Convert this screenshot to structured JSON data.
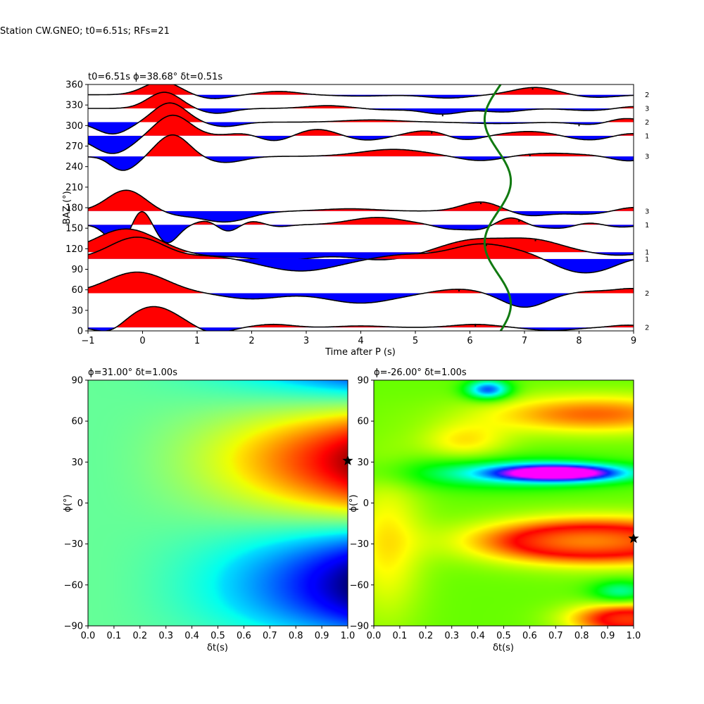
{
  "figure": {
    "suptitle": "Station CW.GNEO; t0=6.51s; RFs=21"
  },
  "chart_data": [
    {
      "type": "line",
      "title": "t0=6.51s ϕ=38.68° δt=0.51s",
      "xlabel": "Time after P (s)",
      "ylabel": "BAZ (°)",
      "xlim": [
        -1,
        9
      ],
      "ylim": [
        0,
        360
      ],
      "xticks": [
        "−1",
        "0",
        "1",
        "2",
        "3",
        "4",
        "5",
        "6",
        "7",
        "8",
        "9"
      ],
      "yticks": [
        "0",
        "30",
        "60",
        "90",
        "120",
        "150",
        "180",
        "210",
        "240",
        "270",
        "300",
        "330",
        "360"
      ],
      "positive_fill": "#ff0000",
      "negative_fill": "#0000ff",
      "t0_curve_color": "#117a11",
      "t0_curve": {
        "mean": 6.51,
        "amplitude": 0.24,
        "phase_deg": 38.68
      },
      "traces": [
        {
          "baz": 345,
          "count": "2",
          "amp": 19,
          "peaks": [
            [
              0.35,
              1.0,
              0.32
            ],
            [
              1.3,
              -0.3,
              0.3
            ],
            [
              2.5,
              0.25,
              0.35
            ],
            [
              4.0,
              -0.1,
              0.5
            ],
            [
              5.6,
              -0.25,
              0.4
            ],
            [
              7.2,
              0.55,
              0.4
            ],
            [
              8.3,
              -0.2,
              0.4
            ]
          ],
          "marker_t": 7.15
        },
        {
          "baz": 325,
          "count": "3",
          "amp": 20,
          "peaks": [
            [
              0.4,
              1.15,
              0.3
            ],
            [
              1.35,
              -0.35,
              0.3
            ],
            [
              3.4,
              0.2,
              0.4
            ],
            [
              4.5,
              -0.1,
              0.4
            ],
            [
              5.5,
              -0.4,
              0.35
            ],
            [
              6.6,
              -0.25,
              0.35
            ],
            [
              8.2,
              -0.15,
              0.4
            ],
            [
              9.0,
              0.15,
              0.3
            ]
          ],
          "marker_t": 5.5
        },
        {
          "baz": 305,
          "count": "2",
          "amp": 21,
          "peaks": [
            [
              -0.55,
              -0.8,
              0.3
            ],
            [
              0.5,
              1.3,
              0.3
            ],
            [
              1.5,
              -0.3,
              0.3
            ],
            [
              4.2,
              0.15,
              0.5
            ],
            [
              6.5,
              -0.1,
              0.5
            ],
            [
              8.3,
              -0.2,
              0.35
            ],
            [
              8.8,
              0.3,
              0.3
            ]
          ],
          "marker_t": 8.0
        },
        {
          "baz": 285,
          "count": "1",
          "amp": 21,
          "peaks": [
            [
              -0.55,
              -1.2,
              0.35
            ],
            [
              0.55,
              1.4,
              0.32
            ],
            [
              1.9,
              0.2,
              0.3
            ],
            [
              2.4,
              -0.4,
              0.3
            ],
            [
              3.2,
              0.45,
              0.35
            ],
            [
              4.1,
              -0.3,
              0.35
            ],
            [
              5.2,
              0.35,
              0.35
            ],
            [
              5.9,
              -0.3,
              0.3
            ],
            [
              7.1,
              0.3,
              0.45
            ],
            [
              8.2,
              -0.3,
              0.4
            ],
            [
              8.9,
              0.2,
              0.3
            ]
          ],
          "marker_t": 5.3
        },
        {
          "baz": 255,
          "count": "3",
          "amp": 22,
          "peaks": [
            [
              -0.7,
              0.3,
              0.2
            ],
            [
              -0.4,
              -1.0,
              0.3
            ],
            [
              0.55,
              1.4,
              0.3
            ],
            [
              1.5,
              -0.4,
              0.35
            ],
            [
              4.6,
              0.45,
              0.6
            ],
            [
              6.2,
              -0.3,
              0.4
            ],
            [
              7.5,
              0.2,
              0.6
            ],
            [
              8.9,
              -0.3,
              0.3
            ]
          ],
          "marker_t": 7.1
        },
        {
          "baz": 175,
          "count": "3",
          "amp": 22,
          "peaks": [
            [
              -0.3,
              1.35,
              0.35
            ],
            [
              0.6,
              -0.2,
              0.3
            ],
            [
              1.5,
              -0.7,
              0.45
            ],
            [
              3.8,
              0.15,
              0.5
            ],
            [
              6.2,
              0.6,
              0.35
            ],
            [
              7.1,
              -0.3,
              0.35
            ],
            [
              8.1,
              -0.2,
              0.4
            ],
            [
              9.0,
              0.25,
              0.3
            ]
          ],
          "marker_t": 6.2
        },
        {
          "baz": 155,
          "count": "1",
          "amp": 26,
          "peaks": [
            [
              -0.4,
              -1.2,
              0.23
            ],
            [
              -0.05,
              1.1,
              0.18
            ],
            [
              0.45,
              -1.0,
              0.2
            ],
            [
              1.2,
              0.25,
              0.2
            ],
            [
              1.55,
              -0.4,
              0.2
            ],
            [
              2.0,
              0.2,
              0.2
            ],
            [
              2.5,
              -0.1,
              0.2
            ],
            [
              4.3,
              0.4,
              0.5
            ],
            [
              5.6,
              -0.2,
              0.25
            ],
            [
              6.2,
              -0.3,
              0.3
            ],
            [
              6.8,
              0.55,
              0.3
            ],
            [
              7.1,
              -0.3,
              0.25
            ],
            [
              7.7,
              -0.2,
              0.25
            ],
            [
              8.2,
              0.15,
              0.3
            ],
            [
              8.7,
              -0.15,
              0.3
            ]
          ],
          "marker_t": 6.9
        },
        {
          "baz": 115,
          "count": "1",
          "amp": 22,
          "peaks": [
            [
              -0.3,
              1.5,
              0.55
            ],
            [
              1.2,
              -0.2,
              0.4
            ],
            [
              2.5,
              -0.55,
              0.6
            ],
            [
              4.4,
              -0.5,
              0.6
            ],
            [
              6.1,
              0.8,
              0.6
            ],
            [
              7.2,
              0.7,
              0.5
            ],
            [
              8.7,
              -0.2,
              0.4
            ]
          ],
          "marker_t": 7.2
        },
        {
          "baz": 105,
          "count": "1",
          "amp": 20,
          "peaks": [
            [
              -0.1,
              1.55,
              0.5
            ],
            [
              1.3,
              0.2,
              0.4
            ],
            [
              2.9,
              -0.85,
              0.65
            ],
            [
              4.8,
              0.3,
              0.5
            ],
            [
              6.2,
              1.05,
              0.55
            ],
            [
              7.1,
              0.3,
              0.4
            ],
            [
              8.1,
              -1.0,
              0.55
            ],
            [
              9.0,
              0.2,
              0.3
            ]
          ],
          "marker_t": 6.3
        },
        {
          "baz": 55,
          "count": "2",
          "amp": 20,
          "peaks": [
            [
              -0.1,
              1.5,
              0.55
            ],
            [
              2.0,
              -0.4,
              0.5
            ],
            [
              4.0,
              -0.7,
              0.6
            ],
            [
              5.8,
              0.3,
              0.45
            ],
            [
              7.0,
              -1.0,
              0.4
            ],
            [
              8.3,
              0.15,
              0.4
            ],
            [
              9.0,
              0.3,
              0.3
            ]
          ],
          "marker_t": 5.8
        },
        {
          "baz": 5,
          "count": "2",
          "amp": 22,
          "peaks": [
            [
              -0.6,
              -0.45,
              0.25
            ],
            [
              0.2,
              1.35,
              0.45
            ],
            [
              1.3,
              -0.4,
              0.3
            ],
            [
              2.4,
              0.2,
              0.35
            ],
            [
              4.0,
              0.1,
              0.4
            ],
            [
              6.1,
              0.2,
              0.4
            ],
            [
              7.5,
              -0.2,
              0.4
            ],
            [
              8.9,
              0.15,
              0.3
            ]
          ],
          "marker_t": 6.1
        }
      ]
    },
    {
      "type": "heatmap",
      "title": "ϕ=31.00° δt=1.00s",
      "xlabel": "δt(s)",
      "ylabel": "ϕ(°)",
      "xlim": [
        0,
        1
      ],
      "ylim": [
        -90,
        90
      ],
      "xticks": [
        "0.0",
        "0.1",
        "0.2",
        "0.3",
        "0.4",
        "0.5",
        "0.6",
        "0.7",
        "0.8",
        "0.9",
        "1.0"
      ],
      "yticks": [
        "−90",
        "−60",
        "−30",
        "0",
        "30",
        "60",
        "90"
      ],
      "colormap": "jet",
      "best": {
        "dt": 1.0,
        "phi": 31.0
      },
      "model": "left"
    },
    {
      "type": "heatmap",
      "title": "ϕ=-26.00° δt=1.00s",
      "xlabel": "δt(s)",
      "ylabel": "ϕ(°)",
      "xlim": [
        0,
        1
      ],
      "ylim": [
        -90,
        90
      ],
      "xticks": [
        "0.0",
        "0.1",
        "0.2",
        "0.3",
        "0.4",
        "0.5",
        "0.6",
        "0.7",
        "0.8",
        "0.9",
        "1.0"
      ],
      "yticks": [
        "−90",
        "−60",
        "−30",
        "0",
        "30",
        "60",
        "90"
      ],
      "colormap": "gist_rainbow",
      "best": {
        "dt": 1.0,
        "phi": -26.0
      },
      "model": "right"
    }
  ]
}
